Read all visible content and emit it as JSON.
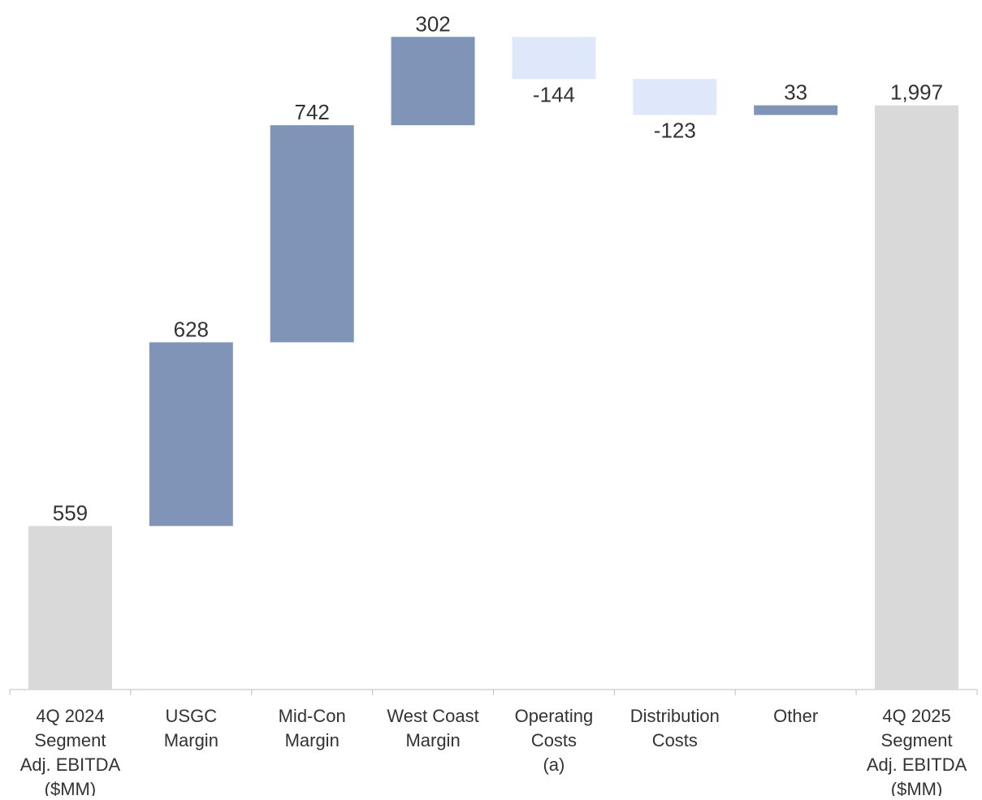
{
  "chart_data": {
    "type": "waterfall",
    "title": "",
    "xlabel": "",
    "ylabel": "",
    "categories": [
      "4Q 2024\nSegment\nAdj. EBITDA\n($MM)",
      "USGC\nMargin",
      "Mid-Con\nMargin",
      "West Coast\nMargin",
      "Operating\nCosts\n(a)",
      "Distribution\nCosts",
      "Other",
      "4Q 2025\nSegment\nAdj. EBITDA\n($MM)"
    ],
    "values": [
      559,
      628,
      742,
      302,
      -144,
      -123,
      33,
      1997
    ],
    "labels": [
      "559",
      "628",
      "742",
      "302",
      "-144",
      "-123",
      "33",
      "1,997"
    ],
    "kinds": [
      "total",
      "delta",
      "delta",
      "delta",
      "delta",
      "delta",
      "delta",
      "total"
    ],
    "ylim": [
      0,
      2250
    ],
    "grid": false,
    "legend": "none",
    "colors": {
      "total": "#d9d9d9",
      "increase": "#8094b8",
      "decrease": "#dfe8fb",
      "axis": "#bfbfbf",
      "text": "#333333"
    }
  }
}
